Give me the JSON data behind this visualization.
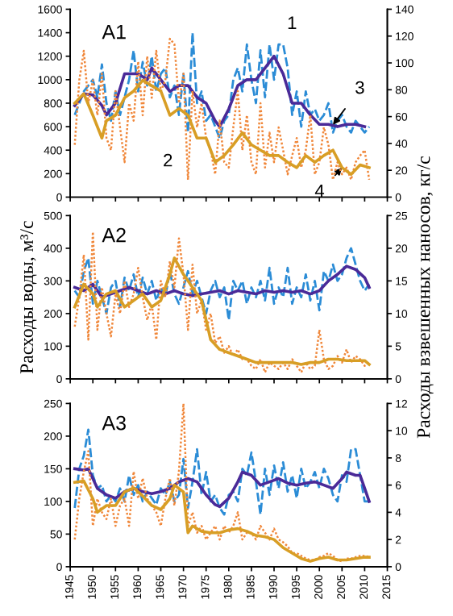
{
  "chart_data": [
    {
      "type": "line",
      "title": "A1",
      "xlim": [
        1945,
        2015
      ],
      "xticks": [
        1945,
        1950,
        1955,
        1960,
        1965,
        1970,
        1975,
        1980,
        1985,
        1990,
        1995,
        2000,
        2005,
        2010,
        2015
      ],
      "ylim": [
        0,
        1600
      ],
      "yticks": [
        0,
        200,
        400,
        600,
        800,
        1000,
        1200,
        1400,
        1600
      ],
      "y2lim": [
        0,
        140
      ],
      "y2ticks": [
        0,
        20,
        40,
        60,
        80,
        100,
        120,
        140
      ],
      "tick_labels": "y",
      "grid": false,
      "legend": false,
      "x": [
        1946,
        1947,
        1948,
        1949,
        1950,
        1951,
        1952,
        1953,
        1954,
        1955,
        1956,
        1957,
        1958,
        1959,
        1960,
        1961,
        1962,
        1963,
        1964,
        1965,
        1966,
        1967,
        1968,
        1969,
        1970,
        1971,
        1972,
        1973,
        1974,
        1975,
        1976,
        1977,
        1978,
        1979,
        1980,
        1981,
        1982,
        1983,
        1984,
        1985,
        1986,
        1987,
        1988,
        1989,
        1990,
        1991,
        1992,
        1993,
        1994,
        1995,
        1996,
        1997,
        1998,
        1999,
        2000,
        2001,
        2002,
        2003,
        2004,
        2005,
        2006,
        2007,
        2008,
        2009,
        2010,
        2011
      ],
      "annotations": [
        {
          "text": "1",
          "x": 1991,
          "y": 1300
        },
        {
          "text": "2",
          "x": 1971,
          "y": 149
        },
        {
          "text": "3",
          "x": 2003,
          "y": 615
        },
        {
          "text": "4",
          "x": 2005,
          "y": 251
        }
      ],
      "series": [
        {
          "color": "#2b8cd6",
          "line_style": "dashed",
          "values": [
            700,
            800,
            900,
            950,
            1000,
            850,
            1130,
            800,
            650,
            900,
            700,
            850,
            1000,
            1250,
            900,
            1150,
            950,
            1200,
            900,
            1050,
            1100,
            850,
            950,
            700,
            1050,
            550,
            1400,
            800,
            900,
            650,
            700,
            600,
            500,
            650,
            700,
            1000,
            1100,
            900,
            1300,
            1000,
            800,
            1250,
            850,
            1300,
            1000,
            1300,
            1300,
            1100,
            700,
            900,
            600,
            900,
            700,
            750,
            650,
            700,
            800,
            550,
            650,
            700,
            600,
            550,
            650,
            600,
            550,
            600
          ]
        },
        {
          "color": "#f0873a",
          "line_style": "dotted",
          "axis": "y2",
          "values": [
            39,
            87,
            109,
            70,
            87,
            61,
            92,
            44,
            35,
            79,
            52,
            26,
            70,
            57,
            101,
            61,
            105,
            74,
            109,
            79,
            87,
            118,
            114,
            70,
            92,
            13,
            79,
            52,
            70,
            44,
            35,
            17,
            57,
            26,
            22,
            52,
            79,
            35,
            61,
            26,
            17,
            70,
            22,
            48,
            26,
            52,
            35,
            17,
            31,
            44,
            22,
            35,
            61,
            17,
            26,
            52,
            39,
            13,
            26,
            17,
            22,
            13,
            26,
            31,
            35,
            13
          ]
        },
        {
          "color": "#4a2a98",
          "line_style": "solid",
          "x": [
            1946,
            1948,
            1950,
            1952,
            1953,
            1955,
            1957,
            1960,
            1962,
            1963,
            1965,
            1967,
            1969,
            1971,
            1973,
            1975,
            1977,
            1978,
            1980,
            1982,
            1984,
            1986,
            1988,
            1990,
            1992,
            1994,
            1996,
            1998,
            2000,
            2002,
            2004,
            2006,
            2008,
            2010
          ],
          "values": [
            780,
            880,
            870,
            780,
            700,
            800,
            1050,
            1050,
            1000,
            1100,
            1000,
            900,
            950,
            950,
            850,
            800,
            650,
            600,
            750,
            950,
            1000,
            1000,
            1100,
            1200,
            1050,
            800,
            800,
            700,
            620,
            620,
            600,
            620,
            620,
            600
          ]
        },
        {
          "color": "#d89e25",
          "line_style": "solid",
          "axis": "y2",
          "x": [
            1946,
            1948,
            1950,
            1952,
            1953,
            1955,
            1957,
            1959,
            1961,
            1963,
            1965,
            1967,
            1969,
            1971,
            1973,
            1975,
            1977,
            1979,
            1981,
            1983,
            1985,
            1987,
            1989,
            1991,
            1993,
            1995,
            1997,
            1999,
            2001,
            2003,
            2005,
            2007,
            2009,
            2011
          ],
          "values": [
            70,
            77,
            61,
            44,
            57,
            61,
            74,
            79,
            87,
            83,
            79,
            61,
            66,
            61,
            44,
            44,
            26,
            31,
            39,
            48,
            39,
            35,
            31,
            31,
            26,
            22,
            31,
            26,
            31,
            35,
            22,
            17,
            24,
            22
          ]
        }
      ]
    },
    {
      "type": "line",
      "title": "A2",
      "ylabel": "Расходы воды, м³/с",
      "y2label": "Расходы взвешенных наносов, кг/с",
      "xlim": [
        1945,
        2015
      ],
      "xticks": [
        1945,
        1950,
        1955,
        1960,
        1965,
        1970,
        1975,
        1980,
        1985,
        1990,
        1995,
        2000,
        2005,
        2010,
        2015
      ],
      "ylim": [
        0,
        500
      ],
      "yticks": [
        0,
        100,
        200,
        300,
        400,
        500
      ],
      "y2lim": [
        0,
        25
      ],
      "y2ticks": [
        0,
        5,
        10,
        15,
        20,
        25
      ],
      "tick_labels": "y",
      "grid": false,
      "legend": false,
      "x": [
        1946,
        1947,
        1948,
        1949,
        1950,
        1951,
        1952,
        1953,
        1954,
        1955,
        1956,
        1957,
        1958,
        1959,
        1960,
        1961,
        1962,
        1963,
        1964,
        1965,
        1966,
        1967,
        1968,
        1969,
        1970,
        1971,
        1972,
        1973,
        1974,
        1975,
        1976,
        1977,
        1978,
        1979,
        1980,
        1981,
        1982,
        1983,
        1984,
        1985,
        1986,
        1987,
        1988,
        1989,
        1990,
        1991,
        1992,
        1993,
        1994,
        1995,
        1996,
        1997,
        1998,
        1999,
        2000,
        2001,
        2002,
        2003,
        2004,
        2005,
        2006,
        2007,
        2008,
        2009,
        2010,
        2011
      ],
      "series": [
        {
          "color": "#2b8cd6",
          "line_style": "dashed",
          "values": [
            270,
            250,
            330,
            370,
            230,
            300,
            250,
            200,
            280,
            300,
            220,
            310,
            270,
            320,
            250,
            310,
            260,
            300,
            240,
            280,
            250,
            330,
            260,
            230,
            280,
            330,
            260,
            300,
            250,
            200,
            270,
            300,
            250,
            280,
            180,
            300,
            270,
            300,
            230,
            280,
            250,
            300,
            240,
            340,
            230,
            280,
            250,
            340,
            230,
            280,
            250,
            320,
            240,
            300,
            210,
            330,
            300,
            350,
            300,
            320,
            370,
            400,
            350,
            300,
            270,
            290
          ]
        },
        {
          "color": "#f0873a",
          "line_style": "dotted",
          "axis": "y2",
          "values": [
            8,
            12.5,
            19,
            6,
            22.5,
            7.5,
            14,
            10,
            6.5,
            13,
            10,
            15,
            11,
            13,
            17,
            12.5,
            9,
            11.5,
            6,
            15,
            12.5,
            18,
            14,
            21.5,
            16,
            7.5,
            17.5,
            10,
            12,
            7.5,
            10,
            5.5,
            6.5,
            4,
            5,
            3.5,
            4.5,
            3,
            3,
            2,
            1.5,
            3,
            1,
            2.5,
            2,
            1.5,
            2.5,
            1.5,
            3,
            2,
            1,
            2.5,
            1.5,
            2,
            7.5,
            3,
            1.5,
            2,
            3.5,
            2.5,
            4.5,
            2.5,
            3.5,
            3,
            2,
            2.5
          ]
        },
        {
          "color": "#4a2a98",
          "line_style": "solid",
          "x": [
            1946,
            1948,
            1950,
            1952,
            1954,
            1956,
            1958,
            1960,
            1962,
            1964,
            1966,
            1968,
            1970,
            1972,
            1974,
            1976,
            1978,
            1980,
            1982,
            1984,
            1986,
            1988,
            1990,
            1992,
            1994,
            1996,
            1998,
            2000,
            2002,
            2004,
            2006,
            2008,
            2010,
            2011
          ],
          "values": [
            280,
            270,
            290,
            250,
            260,
            270,
            280,
            270,
            260,
            270,
            260,
            270,
            260,
            255,
            260,
            265,
            270,
            260,
            270,
            265,
            260,
            270,
            265,
            270,
            265,
            270,
            260,
            270,
            300,
            320,
            345,
            335,
            310,
            280
          ]
        },
        {
          "color": "#d89e25",
          "line_style": "solid",
          "axis": "y2",
          "x": [
            1946,
            1948,
            1950,
            1951,
            1953,
            1955,
            1957,
            1959,
            1961,
            1963,
            1965,
            1967,
            1968,
            1970,
            1972,
            1974,
            1975,
            1976,
            1978,
            1980,
            1982,
            1984,
            1986,
            1988,
            1990,
            1992,
            1994,
            1996,
            1998,
            2000,
            2002,
            2004,
            2006,
            2008,
            2010,
            2011
          ],
          "values": [
            11,
            14.5,
            13,
            11,
            13,
            13.5,
            11,
            12,
            13,
            11,
            12,
            16,
            18.5,
            16,
            14,
            12,
            9,
            6,
            4.5,
            4,
            3.5,
            3,
            2.5,
            2.5,
            2.5,
            2.5,
            2.5,
            2.2,
            2.5,
            2.5,
            3,
            3,
            2.8,
            2.8,
            2.8,
            2.2
          ]
        }
      ]
    },
    {
      "type": "line",
      "title": "A3",
      "xlim": [
        1945,
        2015
      ],
      "xticks": [
        1945,
        1950,
        1955,
        1960,
        1965,
        1970,
        1975,
        1980,
        1985,
        1990,
        1995,
        2000,
        2005,
        2010,
        2015
      ],
      "ylim": [
        0,
        250
      ],
      "yticks": [
        0,
        50,
        100,
        150,
        200,
        250
      ],
      "y2lim": [
        0,
        12
      ],
      "y2ticks": [
        0,
        2,
        4,
        6,
        8,
        10,
        12
      ],
      "grid": false,
      "legend": false,
      "x": [
        1946,
        1947,
        1948,
        1949,
        1950,
        1951,
        1952,
        1953,
        1954,
        1955,
        1956,
        1957,
        1958,
        1959,
        1960,
        1961,
        1962,
        1963,
        1964,
        1965,
        1966,
        1967,
        1968,
        1969,
        1970,
        1971,
        1972,
        1973,
        1974,
        1975,
        1976,
        1977,
        1978,
        1979,
        1980,
        1981,
        1982,
        1983,
        1984,
        1985,
        1986,
        1987,
        1988,
        1989,
        1990,
        1991,
        1992,
        1993,
        1994,
        1995,
        1996,
        1997,
        1998,
        1999,
        2000,
        2001,
        2002,
        2003,
        2004,
        2005,
        2006,
        2007,
        2008,
        2009,
        2010,
        2011
      ],
      "series": [
        {
          "color": "#2b8cd6",
          "line_style": "dashed",
          "values": [
            90,
            150,
            170,
            210,
            140,
            120,
            125,
            100,
            110,
            100,
            120,
            100,
            140,
            110,
            125,
            100,
            115,
            105,
            95,
            120,
            110,
            130,
            100,
            110,
            165,
            90,
            130,
            180,
            110,
            145,
            100,
            110,
            90,
            80,
            110,
            115,
            100,
            150,
            140,
            175,
            130,
            80,
            150,
            110,
            155,
            120,
            160,
            115,
            140,
            105,
            150,
            120,
            130,
            145,
            120,
            150,
            135,
            110,
            100,
            140,
            130,
            180,
            180,
            140,
            100,
            100
          ]
        },
        {
          "color": "#f0873a",
          "line_style": "dotted",
          "axis": "y2",
          "values": [
            2,
            5,
            7,
            8.5,
            3,
            5,
            4,
            3.5,
            5,
            3,
            4.5,
            5,
            3,
            7,
            5,
            6.5,
            5,
            4.5,
            4,
            3,
            5,
            6.5,
            4.5,
            7,
            12,
            3,
            4,
            2.5,
            3,
            2,
            2.5,
            3,
            2,
            3,
            2.5,
            3,
            4,
            2,
            2.5,
            2.5,
            2,
            3,
            2.5,
            2,
            2.8,
            2,
            1.8,
            1.5,
            1,
            1,
            0.8,
            0.6,
            0.5,
            0.5,
            0.7,
            0.8,
            1,
            0.8,
            0.5,
            0.4,
            0.6,
            0.6,
            0.7,
            0.8,
            0.8,
            0.7
          ]
        },
        {
          "color": "#4a2a98",
          "line_style": "solid",
          "x": [
            1946,
            1948,
            1949,
            1951,
            1953,
            1955,
            1957,
            1959,
            1961,
            1963,
            1965,
            1967,
            1969,
            1971,
            1973,
            1975,
            1977,
            1978,
            1980,
            1982,
            1983,
            1985,
            1987,
            1989,
            1991,
            1993,
            1995,
            1997,
            1999,
            2001,
            2003,
            2005,
            2006,
            2008,
            2009,
            2010,
            2011
          ],
          "values": [
            150,
            148,
            150,
            120,
            110,
            105,
            115,
            120,
            115,
            112,
            115,
            120,
            130,
            135,
            130,
            110,
            95,
            92,
            105,
            130,
            145,
            140,
            125,
            130,
            135,
            128,
            125,
            128,
            130,
            125,
            120,
            135,
            145,
            140,
            140,
            120,
            100
          ]
        },
        {
          "color": "#d89e25",
          "line_style": "solid",
          "axis": "y2",
          "x": [
            1946,
            1948,
            1950,
            1951,
            1953,
            1955,
            1957,
            1959,
            1961,
            1963,
            1965,
            1967,
            1968,
            1970,
            1971,
            1972,
            1974,
            1976,
            1978,
            1980,
            1982,
            1984,
            1986,
            1988,
            1990,
            1992,
            1994,
            1996,
            1998,
            2000,
            2002,
            2004,
            2006,
            2008,
            2010,
            2011
          ],
          "values": [
            6.2,
            6.3,
            5,
            4,
            4.5,
            4.5,
            5.5,
            5.8,
            5.2,
            4.5,
            4.2,
            5,
            6,
            5.5,
            2.5,
            3,
            2.6,
            2.5,
            2.5,
            2.7,
            2.8,
            2.6,
            2.3,
            2.2,
            2,
            1.4,
            1,
            0.6,
            0.4,
            0.6,
            0.7,
            0.5,
            0.5,
            0.6,
            0.7,
            0.7
          ]
        }
      ]
    }
  ]
}
